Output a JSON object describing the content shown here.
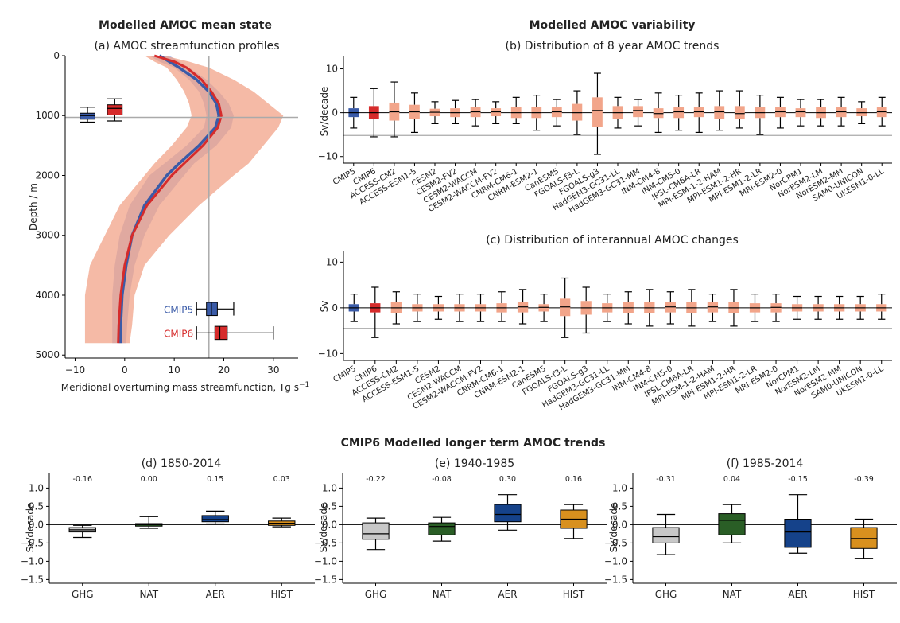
{
  "section_titles": {
    "mean_state": "Modelled AMOC mean state",
    "variability": "Modelled AMOC variability",
    "longterm": "CMIP6 Modelled longer term AMOC trends"
  },
  "colors": {
    "cmip5": "#3a5ba8",
    "cmip6": "#d62b2b",
    "model_box": "#f2a58a",
    "cmip5_band": "#a8b8e4",
    "cmip6_band": "#f1a083",
    "ghg": "#c8c8c8",
    "nat": "#2a5e26",
    "aer": "#15428a",
    "hist": "#d8901e",
    "refline": "#aaaaaa"
  },
  "chart_data": [
    {
      "id": "a",
      "type": "line",
      "title": "(a) AMOC streamfunction profiles",
      "xlabel": "Meridional overturning mass streamfunction, Tg s",
      "xlabel_sup": "−1",
      "ylabel": "Depth / m",
      "xlim": [
        -12,
        35
      ],
      "ylim": [
        5050,
        0
      ],
      "xticks": [
        -10,
        0,
        10,
        20,
        30
      ],
      "yticks": [
        0,
        1000,
        2000,
        3000,
        4000,
        5000
      ],
      "ref_lines": {
        "x": 17,
        "y": 1030
      },
      "series": [
        {
          "name": "CMIP5",
          "depth": [
            0,
            100,
            200,
            400,
            600,
            800,
            1000,
            1200,
            1500,
            1800,
            2000,
            2500,
            3000,
            3500,
            4000,
            4500,
            4800
          ],
          "mean": [
            7,
            9,
            11,
            14.5,
            17,
            18.5,
            19,
            18.3,
            15,
            11,
            8.5,
            4,
            1.5,
            0.3,
            -0.5,
            -0.8,
            -0.8
          ],
          "low": [
            5,
            7,
            10,
            13,
            15,
            16,
            16.5,
            16,
            12.5,
            8,
            5,
            1,
            -1,
            -2,
            -2.5,
            -2.5,
            -2.5
          ],
          "high": [
            9,
            11,
            13,
            16.5,
            19,
            21,
            22,
            21.5,
            18.5,
            14,
            12,
            7,
            4,
            2,
            1,
            0.5,
            0.3
          ]
        },
        {
          "name": "CMIP6",
          "depth": [
            0,
            100,
            200,
            400,
            600,
            800,
            1000,
            1200,
            1500,
            1800,
            2000,
            2500,
            3000,
            3500,
            4000,
            4500,
            4800
          ],
          "mean": [
            6,
            10,
            12.5,
            15.5,
            17.5,
            19,
            19.5,
            18.8,
            15.8,
            12,
            9.5,
            4.5,
            1.5,
            0,
            -0.8,
            -1.2,
            -1.3
          ],
          "low": [
            4,
            6,
            8.5,
            10.5,
            12,
            13,
            13.5,
            12.5,
            9.5,
            6,
            4,
            -1,
            -4,
            -7,
            -8,
            -8,
            -8
          ],
          "high": [
            8,
            13,
            17,
            22,
            26,
            29,
            32,
            31,
            28,
            25,
            22,
            15,
            9,
            4,
            2,
            1.5,
            1
          ]
        }
      ],
      "boxes_depth": [
        {
          "name": "CMIP5",
          "x": -7.5,
          "whislo": 860,
          "q1": 960,
          "med": 1000,
          "q3": 1060,
          "whishi": 1110,
          "width": 3
        },
        {
          "name": "CMIP6",
          "x": -2,
          "whislo": 720,
          "q1": 820,
          "med": 880,
          "q3": 990,
          "whishi": 1090,
          "width": 3
        }
      ],
      "boxes_strength": [
        {
          "label": "CMIP5",
          "depth": 4230,
          "whislo": 14.5,
          "q1": 16.5,
          "med": 17.5,
          "q3": 18.7,
          "whishi": 22,
          "height": 220
        },
        {
          "label": "CMIP6",
          "depth": 4630,
          "whislo": 14.5,
          "q1": 18.2,
          "med": 19.2,
          "q3": 20.7,
          "whishi": 30,
          "height": 220
        }
      ]
    },
    {
      "id": "b",
      "type": "box",
      "title": "(b) Distribution of 8 year AMOC trends",
      "ylabel": "Sv/decade",
      "ylim": [
        -11.5,
        13
      ],
      "yticks": [
        -10,
        0,
        10
      ],
      "ref_line": -5.2,
      "categories": [
        "CMIP5",
        "CMIP6",
        "ACCESS-CM2",
        "ACCESS-ESM1-5",
        "CESM2",
        "CESM2-FV2",
        "CESM2-WACCM",
        "CESM2-WACCM-FV2",
        "CNRM-CM6-1",
        "CNRM-ESM2-1",
        "CanESM5",
        "FGOALS-f3-L",
        "FGOALS-g3",
        "HadGEM3-GC31-LL",
        "HadGEM3-GC31-MM",
        "INM-CM4-8",
        "INM-CM5-0",
        "IPSL-CM6A-LR",
        "MPI-ESM-1-2-HAM",
        "MPI-ESM1-2-HR",
        "MPI-ESM1-2-LR",
        "MRI-ESM2-0",
        "NorCPM1",
        "NorESM2-LM",
        "NorESM2-MM",
        "SAM0-UNICON",
        "UKESM1-0-LL"
      ],
      "boxes": [
        {
          "whislo": -3.5,
          "q1": -1,
          "med": 0,
          "q3": 1,
          "whishi": 3.5
        },
        {
          "whislo": -5.5,
          "q1": -1.5,
          "med": 0,
          "q3": 1.5,
          "whishi": 5.5
        },
        {
          "whislo": -5.5,
          "q1": -1.8,
          "med": 0.2,
          "q3": 2.3,
          "whishi": 7
        },
        {
          "whislo": -4.5,
          "q1": -1.5,
          "med": 0.2,
          "q3": 1.8,
          "whishi": 4.5
        },
        {
          "whislo": -2.5,
          "q1": -0.8,
          "med": 0.1,
          "q3": 0.9,
          "whishi": 2.5
        },
        {
          "whislo": -2.5,
          "q1": -1,
          "med": 0,
          "q3": 1,
          "whishi": 2.8
        },
        {
          "whislo": -3,
          "q1": -1,
          "med": 0.2,
          "q3": 1.2,
          "whishi": 3
        },
        {
          "whislo": -2.5,
          "q1": -0.8,
          "med": 0.2,
          "q3": 1,
          "whishi": 2.5
        },
        {
          "whislo": -2.5,
          "q1": -1.2,
          "med": 0,
          "q3": 1.2,
          "whishi": 3.5
        },
        {
          "whislo": -4,
          "q1": -1.2,
          "med": 0,
          "q3": 1.3,
          "whishi": 4
        },
        {
          "whislo": -3,
          "q1": -1,
          "med": 0.2,
          "q3": 1.2,
          "whishi": 3
        },
        {
          "whislo": -5,
          "q1": -1.8,
          "med": 0,
          "q3": 2,
          "whishi": 5
        },
        {
          "whislo": -9.5,
          "q1": -3.2,
          "med": 0.5,
          "q3": 3.5,
          "whishi": 9
        },
        {
          "whislo": -3.5,
          "q1": -1.5,
          "med": 0,
          "q3": 1.5,
          "whishi": 3.5
        },
        {
          "whislo": -3,
          "q1": -1,
          "med": 0.5,
          "q3": 1.5,
          "whishi": 3
        },
        {
          "whislo": -4.5,
          "q1": -1.2,
          "med": -0.2,
          "q3": 1,
          "whishi": 4.5
        },
        {
          "whislo": -4,
          "q1": -1.2,
          "med": 0.2,
          "q3": 1.2,
          "whishi": 4
        },
        {
          "whislo": -4.5,
          "q1": -1,
          "med": 0.2,
          "q3": 1.2,
          "whishi": 4.5
        },
        {
          "whislo": -4,
          "q1": -1.5,
          "med": 0.2,
          "q3": 1.5,
          "whishi": 5
        },
        {
          "whislo": -3.5,
          "q1": -1.5,
          "med": -0.2,
          "q3": 1.5,
          "whishi": 5
        },
        {
          "whislo": -5,
          "q1": -1.2,
          "med": 0,
          "q3": 1.2,
          "whishi": 4
        },
        {
          "whislo": -3.5,
          "q1": -1,
          "med": 0.2,
          "q3": 1.2,
          "whishi": 3.5
        },
        {
          "whislo": -3,
          "q1": -1,
          "med": 0.2,
          "q3": 1,
          "whishi": 3
        },
        {
          "whislo": -3,
          "q1": -1.2,
          "med": 0,
          "q3": 1.2,
          "whishi": 3
        },
        {
          "whislo": -3,
          "q1": -1,
          "med": 0.2,
          "q3": 1.2,
          "whishi": 3.5
        },
        {
          "whislo": -2.5,
          "q1": -0.8,
          "med": 0,
          "q3": 1,
          "whishi": 2.5
        },
        {
          "whislo": -3,
          "q1": -1,
          "med": 0.2,
          "q3": 1.2,
          "whishi": 3.5
        }
      ]
    },
    {
      "id": "c",
      "type": "box",
      "title": "(c) Distribution of interannual AMOC changes",
      "ylabel": "Sv",
      "ylim": [
        -11.5,
        12.5
      ],
      "yticks": [
        -10,
        0,
        10
      ],
      "ref_line": -4.5,
      "categories": [
        "CMIP5",
        "CMIP6",
        "ACCESS-CM2",
        "ACCESS-ESM1-5",
        "CESM2",
        "CESM2-WACCM",
        "CESM2-WACCM-FV2",
        "CNRM-CM6-1",
        "CNRM-ESM2-1",
        "CanESM5",
        "FGOALS-f3-L",
        "FGOALS-g3",
        "HadGEM3-GC31-LL",
        "HadGEM3-GC31-MM",
        "INM-CM4-8",
        "INM-CM5-0",
        "IPSL-CM6A-LR",
        "MPI-ESM-1-2-HAM",
        "MPI-ESM1-2-HR",
        "MPI-ESM1-2-LR",
        "MRI-ESM2-0",
        "NorCPM1",
        "NorESM2-LM",
        "NorESM2-MM",
        "SAM0-UNICON",
        "UKESM1-0-LL"
      ],
      "boxes": [
        {
          "whislo": -3,
          "q1": -0.8,
          "med": 0,
          "q3": 0.8,
          "whishi": 3
        },
        {
          "whislo": -6.5,
          "q1": -1,
          "med": 0,
          "q3": 1,
          "whishi": 4.5
        },
        {
          "whislo": -3.5,
          "q1": -1.2,
          "med": 0,
          "q3": 1.2,
          "whishi": 3.5
        },
        {
          "whislo": -3,
          "q1": -0.8,
          "med": 0,
          "q3": 0.8,
          "whishi": 3
        },
        {
          "whislo": -2.5,
          "q1": -0.8,
          "med": 0,
          "q3": 0.8,
          "whishi": 2.5
        },
        {
          "whislo": -3,
          "q1": -0.8,
          "med": 0,
          "q3": 0.8,
          "whishi": 3
        },
        {
          "whislo": -3,
          "q1": -0.8,
          "med": 0,
          "q3": 0.8,
          "whishi": 3
        },
        {
          "whislo": -3,
          "q1": -1,
          "med": 0,
          "q3": 1,
          "whishi": 3.5
        },
        {
          "whislo": -3.5,
          "q1": -1,
          "med": 0.2,
          "q3": 1.2,
          "whishi": 4
        },
        {
          "whislo": -3,
          "q1": -0.8,
          "med": 0.1,
          "q3": 0.8,
          "whishi": 3
        },
        {
          "whislo": -6.5,
          "q1": -1.8,
          "med": 0.2,
          "q3": 2,
          "whishi": 6.5
        },
        {
          "whislo": -5.5,
          "q1": -1.5,
          "med": 0,
          "q3": 1.5,
          "whishi": 4.5
        },
        {
          "whislo": -3,
          "q1": -1,
          "med": 0,
          "q3": 1,
          "whishi": 3
        },
        {
          "whislo": -3.5,
          "q1": -1.2,
          "med": 0,
          "q3": 1.2,
          "whishi": 3.5
        },
        {
          "whislo": -4,
          "q1": -1.2,
          "med": 0,
          "q3": 1.2,
          "whishi": 4
        },
        {
          "whislo": -3.5,
          "q1": -1,
          "med": 0.2,
          "q3": 1.2,
          "whishi": 3.5
        },
        {
          "whislo": -4,
          "q1": -1.2,
          "med": 0,
          "q3": 1.2,
          "whishi": 4
        },
        {
          "whislo": -3,
          "q1": -1,
          "med": 0.2,
          "q3": 1.2,
          "whishi": 3
        },
        {
          "whislo": -4,
          "q1": -1.2,
          "med": 0,
          "q3": 1.2,
          "whishi": 4
        },
        {
          "whislo": -3,
          "q1": -1,
          "med": 0,
          "q3": 1,
          "whishi": 3
        },
        {
          "whislo": -3,
          "q1": -1,
          "med": 0.1,
          "q3": 1,
          "whishi": 3
        },
        {
          "whislo": -2.5,
          "q1": -0.8,
          "med": 0,
          "q3": 0.8,
          "whishi": 2.5
        },
        {
          "whislo": -2.5,
          "q1": -0.8,
          "med": 0,
          "q3": 0.8,
          "whishi": 2.5
        },
        {
          "whislo": -2.5,
          "q1": -0.8,
          "med": 0,
          "q3": 0.8,
          "whishi": 2.5
        },
        {
          "whislo": -2.5,
          "q1": -0.8,
          "med": 0,
          "q3": 0.8,
          "whishi": 2.5
        },
        {
          "whislo": -2.5,
          "q1": -0.8,
          "med": 0,
          "q3": 0.8,
          "whishi": 3
        }
      ]
    },
    {
      "id": "d",
      "type": "box",
      "title": "(d) 1850-2014",
      "ylabel": "Sv/decade",
      "ylim": [
        -1.6,
        1.4
      ],
      "yticks": [
        -1.5,
        -1.0,
        -0.5,
        0.0,
        0.5,
        1.0
      ],
      "categories": [
        "GHG",
        "NAT",
        "AER",
        "HIST"
      ],
      "box_colors": [
        "ghg",
        "nat",
        "aer",
        "hist"
      ],
      "annotations": [
        "-0.16",
        "0.00",
        "0.15",
        "0.03"
      ],
      "boxes": [
        {
          "whislo": -0.35,
          "q1": -0.2,
          "med": -0.14,
          "q3": -0.08,
          "whishi": -0.02
        },
        {
          "whislo": -0.1,
          "q1": -0.04,
          "med": 0,
          "q3": 0.03,
          "whishi": 0.22
        },
        {
          "whislo": 0.02,
          "q1": 0.08,
          "med": 0.14,
          "q3": 0.25,
          "whishi": 0.37
        },
        {
          "whislo": -0.06,
          "q1": -0.02,
          "med": 0.04,
          "q3": 0.1,
          "whishi": 0.18
        }
      ]
    },
    {
      "id": "e",
      "type": "box",
      "title": "(e) 1940-1985",
      "ylabel": "Sv/decade",
      "ylim": [
        -1.6,
        1.4
      ],
      "yticks": [
        -1.5,
        -1.0,
        -0.5,
        0.0,
        0.5,
        1.0
      ],
      "categories": [
        "GHG",
        "NAT",
        "AER",
        "HIST"
      ],
      "box_colors": [
        "ghg",
        "nat",
        "aer",
        "hist"
      ],
      "annotations": [
        "-0.22",
        "-0.08",
        "0.30",
        "0.16"
      ],
      "boxes": [
        {
          "whislo": -0.68,
          "q1": -0.4,
          "med": -0.25,
          "q3": 0.05,
          "whishi": 0.18
        },
        {
          "whislo": -0.45,
          "q1": -0.28,
          "med": -0.05,
          "q3": 0.05,
          "whishi": 0.2
        },
        {
          "whislo": -0.15,
          "q1": 0.08,
          "med": 0.28,
          "q3": 0.55,
          "whishi": 0.82
        },
        {
          "whislo": -0.38,
          "q1": -0.1,
          "med": 0.15,
          "q3": 0.4,
          "whishi": 0.55
        }
      ]
    },
    {
      "id": "f",
      "type": "box",
      "title": "(f) 1985-2014",
      "ylabel": "Sv/decade",
      "ylim": [
        -1.6,
        1.4
      ],
      "yticks": [
        -1.5,
        -1.0,
        -0.5,
        0.0,
        0.5,
        1.0
      ],
      "categories": [
        "GHG",
        "NAT",
        "AER",
        "HIST"
      ],
      "box_colors": [
        "ghg",
        "nat",
        "aer",
        "hist"
      ],
      "annotations": [
        "-0.31",
        "0.04",
        "-0.15",
        "-0.39"
      ],
      "boxes": [
        {
          "whislo": -0.82,
          "q1": -0.5,
          "med": -0.33,
          "q3": -0.08,
          "whishi": 0.28
        },
        {
          "whislo": -0.5,
          "q1": -0.28,
          "med": 0.12,
          "q3": 0.3,
          "whishi": 0.55
        },
        {
          "whislo": -0.78,
          "q1": -0.62,
          "med": -0.2,
          "q3": 0.15,
          "whishi": 0.82
        },
        {
          "whislo": -0.92,
          "q1": -0.65,
          "med": -0.38,
          "q3": -0.08,
          "whishi": 0.15
        }
      ]
    }
  ]
}
